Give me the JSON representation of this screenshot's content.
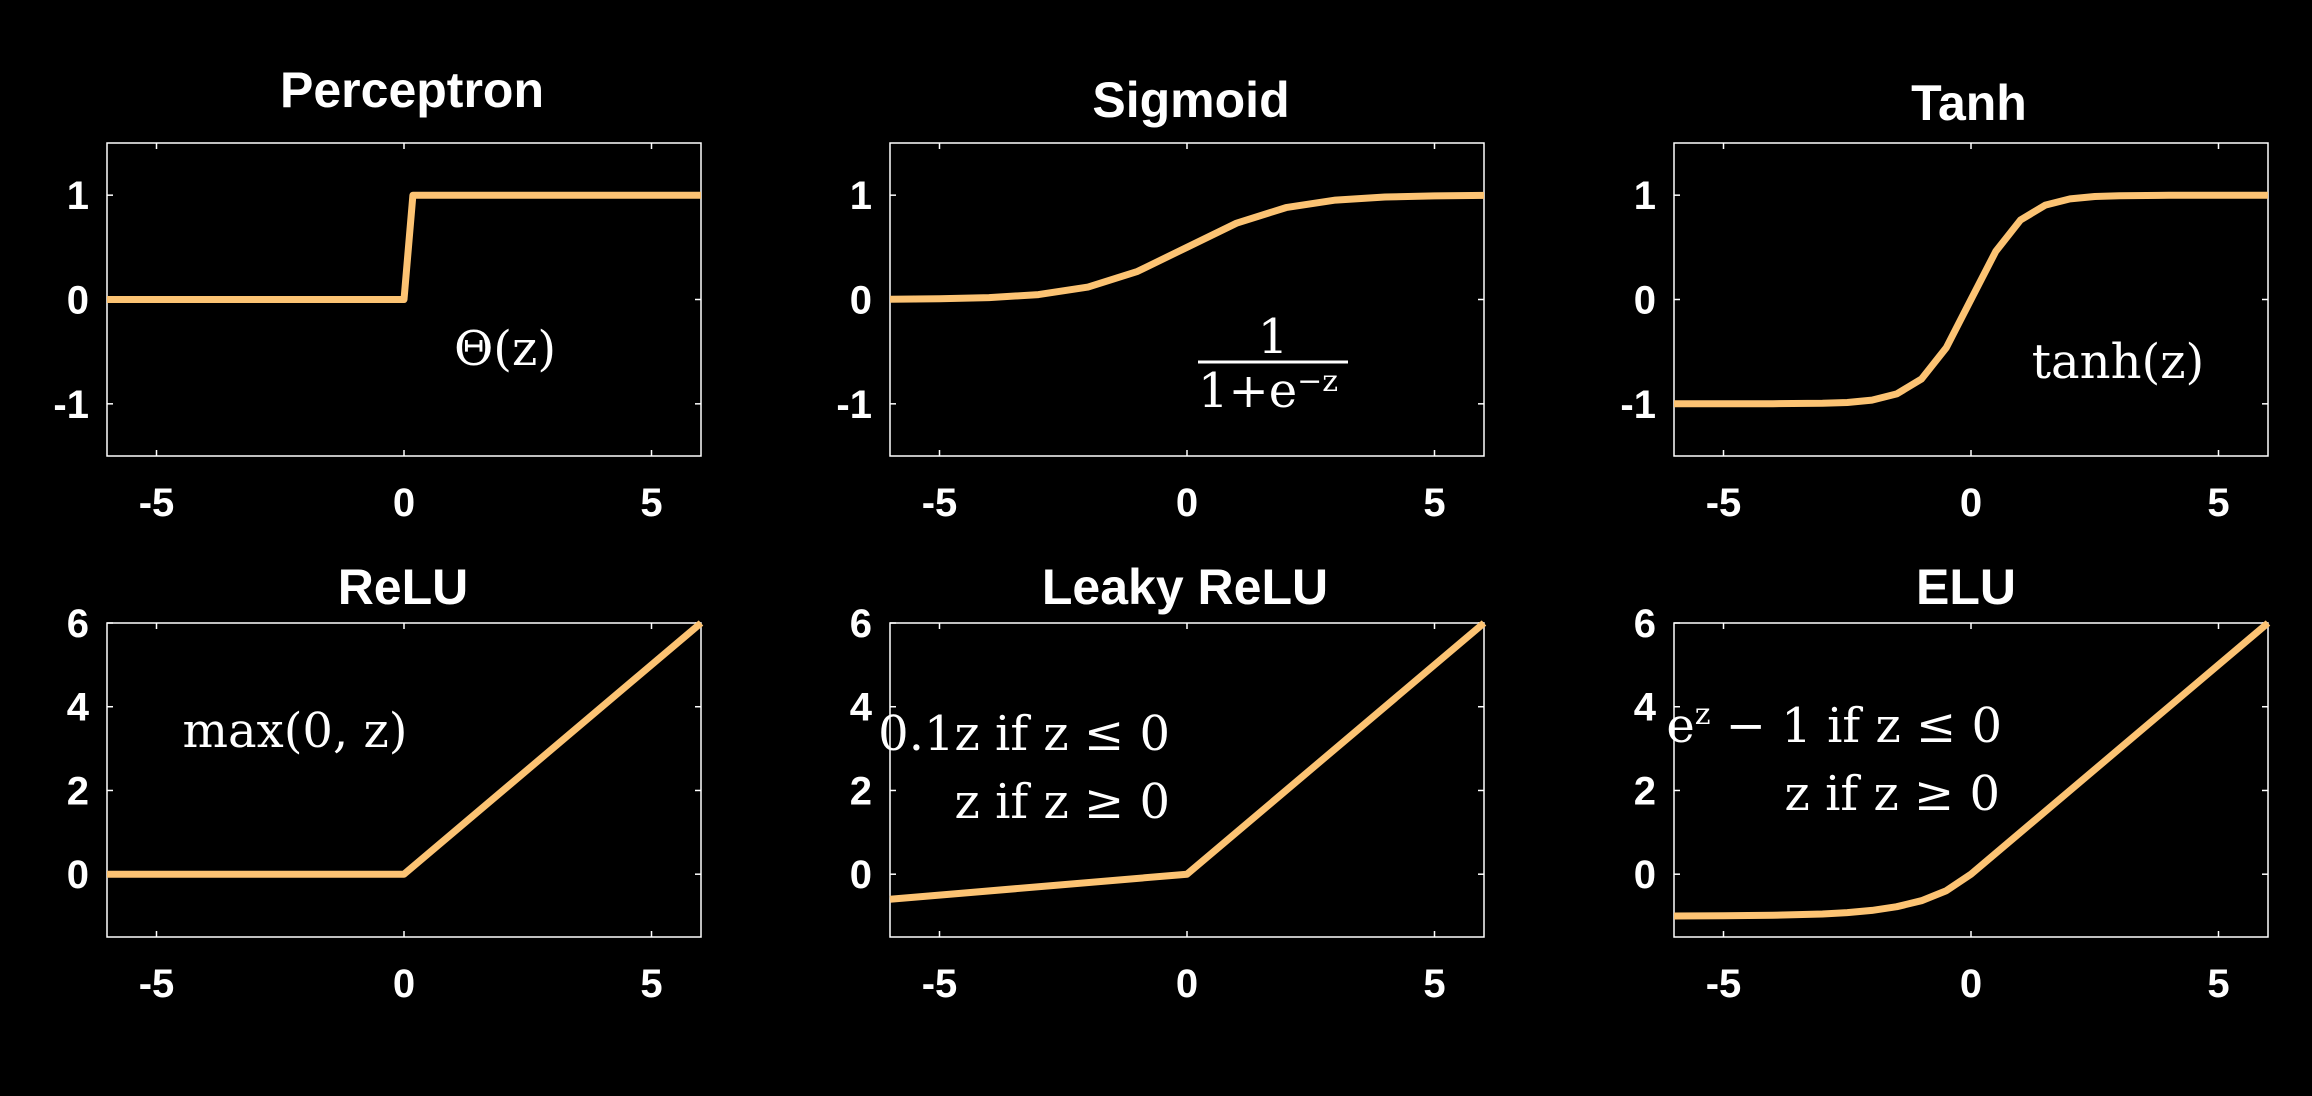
{
  "colors": {
    "background": "#000000",
    "axes": "#ffffff",
    "curve": "#fcc373"
  },
  "chart_data": [
    {
      "type": "line",
      "title": "Perceptron",
      "xlim": [
        -6,
        6
      ],
      "ylim": [
        -1.5,
        1.5
      ],
      "xticks": [
        -5,
        0,
        5
      ],
      "xtick_labels": [
        "-5",
        "0",
        "5"
      ],
      "yticks": [
        1,
        0,
        -1
      ],
      "ytick_labels": [
        "1",
        "0",
        "-1"
      ],
      "annotation": [
        "Θ(z)"
      ],
      "series": [
        {
          "x": [
            -6,
            0,
            0.18,
            6
          ],
          "y": [
            0,
            0,
            1,
            1
          ]
        }
      ]
    },
    {
      "type": "line",
      "title": "Sigmoid",
      "xlim": [
        -6,
        6
      ],
      "ylim": [
        -1.5,
        1.5
      ],
      "xticks": [
        -5,
        0,
        5
      ],
      "xtick_labels": [
        "-5",
        "0",
        "5"
      ],
      "yticks": [
        1,
        0,
        -1
      ],
      "ytick_labels": [
        "1",
        "0",
        "-1"
      ],
      "annotation": [
        "1",
        "1+e",
        "−z"
      ],
      "series": [
        {
          "x": [
            -6,
            -5,
            -4,
            -3,
            -2,
            -1,
            0,
            1,
            2,
            3,
            4,
            5,
            6
          ],
          "y": [
            0.002,
            0.007,
            0.018,
            0.047,
            0.119,
            0.269,
            0.5,
            0.731,
            0.881,
            0.953,
            0.982,
            0.993,
            0.998
          ]
        }
      ]
    },
    {
      "type": "line",
      "title": "Tanh",
      "xlim": [
        -6,
        6
      ],
      "ylim": [
        -1.5,
        1.5
      ],
      "xticks": [
        -5,
        0,
        5
      ],
      "xtick_labels": [
        "-5",
        "0",
        "5"
      ],
      "yticks": [
        1,
        0,
        -1
      ],
      "ytick_labels": [
        "1",
        "0",
        "-1"
      ],
      "annotation": [
        "tanh(z)"
      ],
      "series": [
        {
          "x": [
            -6,
            -5,
            -4,
            -3,
            -2.5,
            -2,
            -1.5,
            -1,
            -0.5,
            0,
            0.5,
            1,
            1.5,
            2,
            2.5,
            3,
            4,
            5,
            6
          ],
          "y": [
            -1,
            -1,
            -0.999,
            -0.995,
            -0.987,
            -0.964,
            -0.905,
            -0.762,
            -0.462,
            0,
            0.462,
            0.762,
            0.905,
            0.964,
            0.987,
            0.995,
            0.999,
            1,
            1
          ]
        }
      ]
    },
    {
      "type": "line",
      "title": "ReLU",
      "xlim": [
        -6,
        6
      ],
      "ylim": [
        -1.5,
        6
      ],
      "xticks": [
        -5,
        0,
        5
      ],
      "xtick_labels": [
        "-5",
        "0",
        "5"
      ],
      "yticks": [
        6,
        4,
        2,
        0
      ],
      "ytick_labels": [
        "6",
        "4",
        "2",
        "0"
      ],
      "annotation": [
        "max(0, z)"
      ],
      "series": [
        {
          "x": [
            -6,
            0,
            6
          ],
          "y": [
            0,
            0,
            6
          ]
        }
      ]
    },
    {
      "type": "line",
      "title": "Leaky ReLU",
      "xlim": [
        -6,
        6
      ],
      "ylim": [
        -1.5,
        6
      ],
      "xticks": [
        -5,
        0,
        5
      ],
      "xtick_labels": [
        "-5",
        "0",
        "5"
      ],
      "yticks": [
        6,
        4,
        2,
        0
      ],
      "ytick_labels": [
        "6",
        "4",
        "2",
        "0"
      ],
      "annotation": [
        "0.1z if z ≤ 0",
        "z if z ≥ 0"
      ],
      "series": [
        {
          "x": [
            -6,
            0,
            6
          ],
          "y": [
            -0.6,
            0,
            6
          ]
        }
      ]
    },
    {
      "type": "line",
      "title": "ELU",
      "xlim": [
        -6,
        6
      ],
      "ylim": [
        -1.5,
        6
      ],
      "xticks": [
        -5,
        0,
        5
      ],
      "xtick_labels": [
        "-5",
        "0",
        "5"
      ],
      "yticks": [
        6,
        4,
        2,
        0
      ],
      "ytick_labels": [
        "6",
        "4",
        "2",
        "0"
      ],
      "annotation": [
        "e",
        "z",
        " − 1 if z ≤ 0",
        "z if z ≥ 0"
      ],
      "series": [
        {
          "x": [
            -6,
            -5,
            -4,
            -3,
            -2.5,
            -2,
            -1.5,
            -1,
            -0.5,
            0,
            6
          ],
          "y": [
            -0.998,
            -0.993,
            -0.982,
            -0.95,
            -0.918,
            -0.865,
            -0.777,
            -0.632,
            -0.393,
            0,
            6
          ]
        }
      ]
    }
  ]
}
